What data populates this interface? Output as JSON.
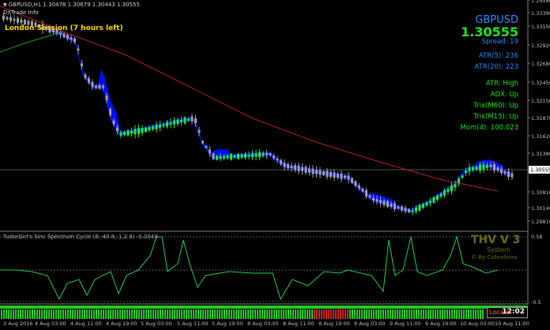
{
  "header": {
    "symbol_line": "GBPUSD,H1  1.30478 1.30679 1.30443 1.30555",
    "subtitle": "DXTrade Info",
    "session": "London Session (7 hours left)"
  },
  "info_panel": {
    "symbol": "GBPUSD",
    "price": "1.30555",
    "spread": "Spread: 19",
    "atr5": "ATR(5): 236",
    "atr20": "ATR(20): 223",
    "atr_state": "ATR: High",
    "adx": "ADX: Up",
    "trix_m60": "Trix(M60): Up",
    "trix_m15": "Trix(M15): Up",
    "momentum": "Mom(4): 100.023"
  },
  "price_axis": [
    "1.33390",
    "1.33150",
    "1.32920",
    "1.32680",
    "1.32450",
    "1.32150",
    "1.31870",
    "1.31620",
    "1.31380",
    "1.31150",
    "1.30810",
    "1.30555",
    "1.30140",
    "1.29810",
    "1.29580"
  ],
  "current_price": "1.30555",
  "indicator": {
    "label": "TudorGirl's Sinc Spectrum Cycle (8,-40.8,-1,2.8) -0.0049",
    "ticks": [
      "0.58",
      "-0.5"
    ],
    "watermark_title": "THV V 3",
    "watermark_sub": "System",
    "watermark_credit": "© By Cobraforex"
  },
  "bottom": {
    "clock": "12:02",
    "clock_prefix": "Locale"
  },
  "time_axis": [
    "3 Aug 2016",
    "4 Aug 03:00",
    "4 Aug 11:00",
    "4 Aug 19:00",
    "5 Aug 03:00",
    "5 Aug 11:00",
    "5 Aug 19:00",
    "8 Aug 03:00",
    "8 Aug 11:00",
    "8 Aug 19:00",
    "9 Aug 03:00",
    "9 Aug 11:00",
    "9 Aug 19:00",
    "10 Aug 03:00",
    "10 Aug 11:00"
  ],
  "colors": {
    "bull": "#22ee22",
    "bear": "#a0a0a0",
    "band": "#0010ff",
    "ma_slow": "#b22222",
    "ma_fast": "#1e9a1e",
    "session": "#ffd700",
    "info_green": "#1ee61e",
    "info_blue": "#2a8cff",
    "osc": "#22cc55",
    "watermark": "#6b6b16"
  }
}
